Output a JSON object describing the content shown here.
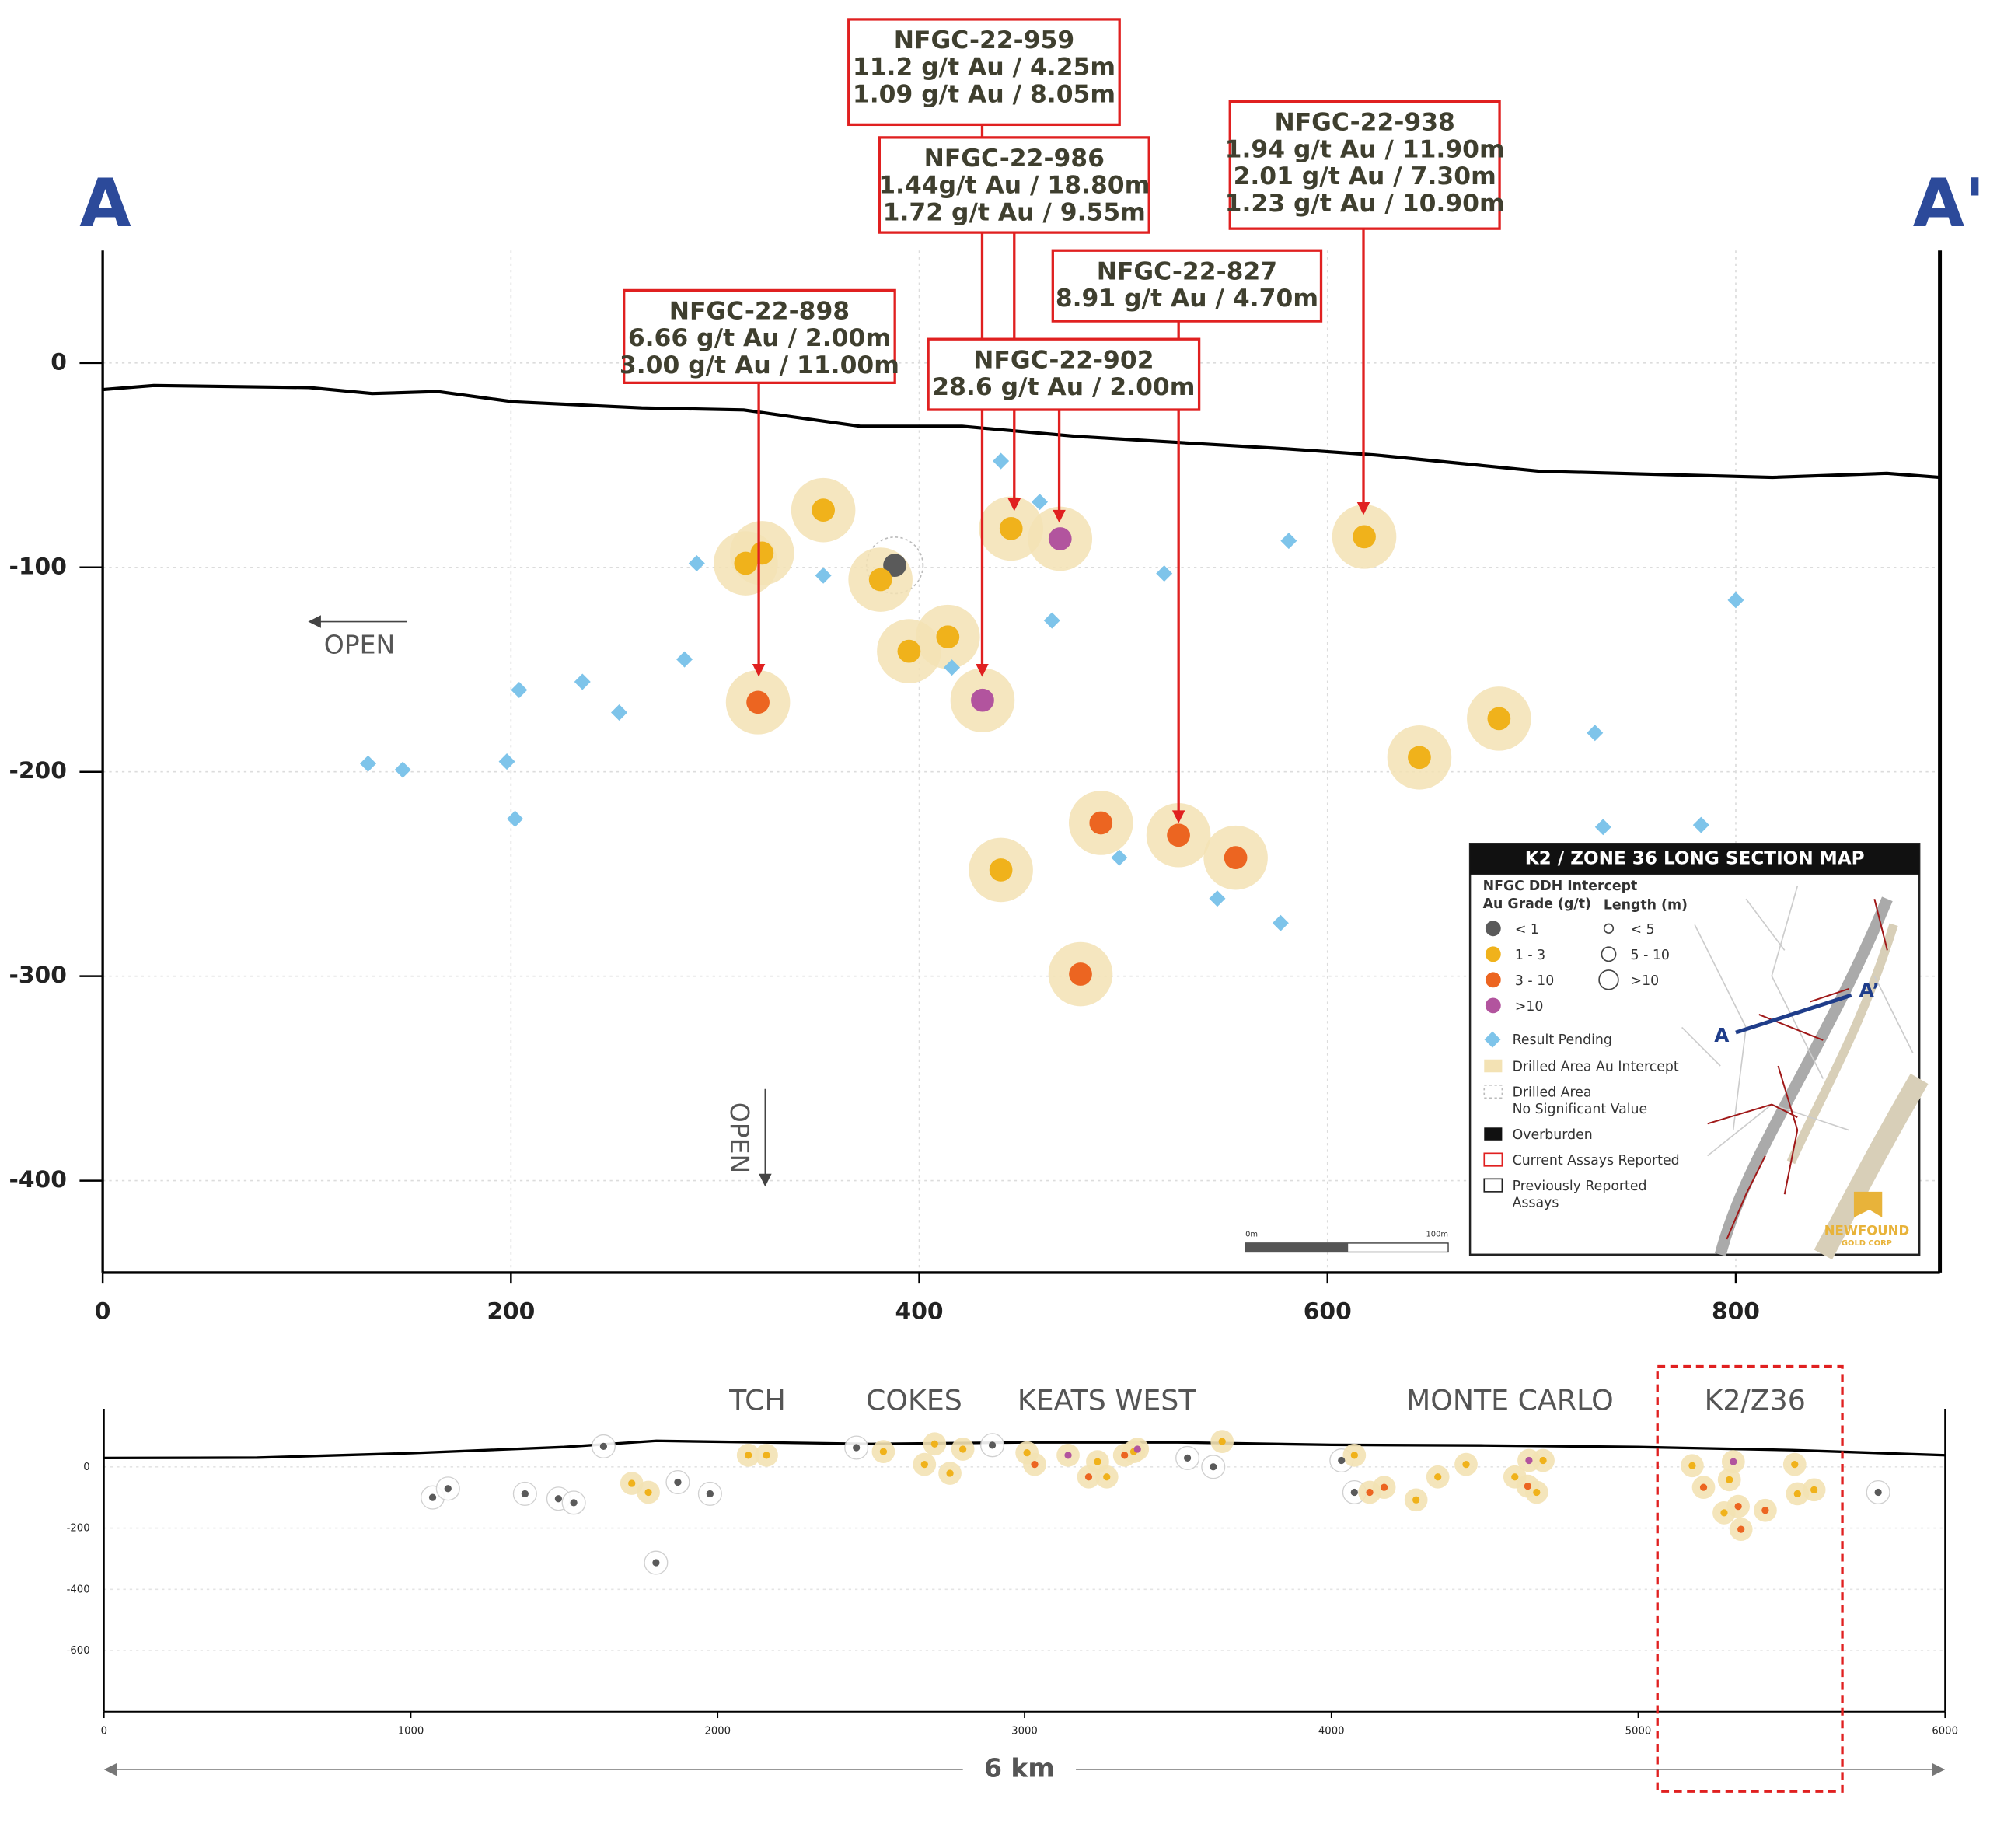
{
  "chart_data": [
    {
      "type": "scatter",
      "section_start": "A",
      "section_end": "A'",
      "xlim": [
        0,
        900
      ],
      "ylim": [
        -445,
        55
      ],
      "xticks": [
        0,
        200,
        400,
        600,
        800
      ],
      "yticks": [
        0,
        -100,
        -200,
        -300,
        -400
      ],
      "grid": true,
      "surface": {
        "x": [
          0,
          25,
          101,
          132,
          164,
          201,
          264,
          314,
          371,
          421,
          478,
          579,
          623,
          704,
          818,
          874,
          900
        ],
        "values": [
          -13,
          -11,
          -12,
          -15,
          -14,
          -19,
          -22,
          -23,
          -31,
          -31,
          -36,
          -42,
          -45,
          -53,
          -56,
          -54,
          -56
        ]
      },
      "series": [
        {
          "name": "< 1",
          "color": "#5a5a5a",
          "marker": "circle",
          "x": [
            388
          ],
          "values": [
            -99
          ]
        },
        {
          "name": "1 - 3",
          "color": "#f0b21b",
          "marker": "circle",
          "x": [
            315,
            323,
            353,
            381,
            395,
            414,
            445,
            618,
            645,
            684,
            440
          ],
          "values": [
            -98,
            -93,
            -72,
            -106,
            -141,
            -134,
            -81,
            -85,
            -193,
            -174,
            -248
          ]
        },
        {
          "name": "3 - 10",
          "color": "#ec6521",
          "marker": "circle",
          "x": [
            321,
            489,
            527,
            555,
            479
          ],
          "values": [
            -166,
            -225,
            -231,
            -242,
            -299
          ]
        },
        {
          "name": ">10",
          "color": "#b2549e",
          "marker": "circle",
          "x": [
            431,
            469
          ],
          "values": [
            -165,
            -86
          ]
        },
        {
          "name": "Result Pending",
          "color": "#7ec4ea",
          "marker": "diamond",
          "x": [
            440,
            459,
            581,
            800,
            291,
            353,
            520,
            465,
            416,
            285,
            204,
            235,
            253,
            130,
            147,
            198,
            202,
            731,
            735,
            783,
            498,
            546,
            577
          ],
          "values": [
            -48,
            -68,
            -87,
            -116,
            -98,
            -104,
            -103,
            -126,
            -149,
            -145,
            -160,
            -156,
            -171,
            -196,
            -199,
            -195,
            -223,
            -181,
            -227,
            -226,
            -242,
            -262,
            -274
          ]
        }
      ],
      "callouts": [
        {
          "lines": [
            "NFGC-22-959",
            "11.2 g/t Au / 4.25m",
            "1.09 g/t Au / 8.05m"
          ]
        },
        {
          "lines": [
            "NFGC-22-986",
            "1.44g/t Au / 18.80m",
            "1.72 g/t Au / 9.55m"
          ]
        },
        {
          "lines": [
            "NFGC-22-938",
            "1.94 g/t Au / 11.90m",
            "2.01 g/t Au / 7.30m",
            "1.23 g/t Au / 10.90m"
          ]
        },
        {
          "lines": [
            "NFGC-22-827",
            "8.91 g/t Au / 4.70m"
          ]
        },
        {
          "lines": [
            "NFGC-22-898",
            "6.66 g/t Au / 2.00m",
            "3.00 g/t Au / 11.00m"
          ]
        },
        {
          "lines": [
            "NFGC-22-902",
            "28.6 g/t Au / 2.00m"
          ]
        }
      ],
      "annotations": [
        "OPEN",
        "OPEN"
      ],
      "legend": {
        "title": "K2 / ZONE 36 LONG SECTION MAP",
        "heading": "NFGC DDH Intercept",
        "grade_heading": "Au Grade (g/t)",
        "length_heading": "Length (m)",
        "length_items": [
          "< 5",
          "5 - 10",
          ">10"
        ],
        "extra_items": [
          [
            "Drilled Area Au Intercept"
          ],
          [
            "Drilled Area",
            "No Significant Value"
          ],
          [
            "Overburden"
          ],
          [
            "Current Assays Reported"
          ],
          [
            "Previously Reported",
            "Assays"
          ]
        ],
        "map_labels": [
          "A",
          "A’"
        ],
        "scale": [
          "0m",
          "100m"
        ],
        "logo": [
          "NEWFOUND",
          "GOLD CORP"
        ]
      }
    },
    {
      "type": "scatter",
      "xlim": [
        0,
        6000
      ],
      "ylim": [
        -800,
        190
      ],
      "xticks": [
        0,
        1000,
        2000,
        3000,
        4000,
        5000,
        6000
      ],
      "yticks": [
        0,
        -200,
        -400,
        -600
      ],
      "surface": {
        "x": [
          0,
          500,
          1000,
          1500,
          1800,
          2500,
          3000,
          3500,
          4000,
          4500,
          5000,
          5500,
          6000
        ],
        "values": [
          29,
          30,
          45,
          65,
          85,
          75,
          80,
          80,
          72,
          70,
          65,
          55,
          38
        ]
      },
      "series": [
        {
          "color": "#5a5a5a",
          "x": [
            1071,
            1121,
            1372,
            1481,
            1531,
            1628,
            1870,
            1975,
            1799,
            2452,
            3531,
            3615,
            4033,
            4075,
            5782,
            2895
          ],
          "values": [
            -100,
            -71,
            -88,
            -104,
            -117,
            67,
            -50,
            -88,
            -313,
            63,
            29,
            0,
            21,
            -83,
            -83,
            71
          ]
        },
        {
          "color": "#f0b21b",
          "x": [
            1720,
            1774,
            2100,
            2159,
            2540,
            2674,
            2707,
            2757,
            2799,
            3008,
            3238,
            3268,
            3356,
            3644,
            4075,
            4347,
            4276,
            4439,
            4598,
            4669,
            4690,
            5176,
            5297,
            5280,
            5510,
            5519,
            5573
          ],
          "values": [
            -54,
            -83,
            38,
            38,
            50,
            8,
            75,
            -21,
            58,
            46,
            17,
            -33,
            50,
            83,
            38,
            -33,
            -108,
            8,
            -33,
            -83,
            21,
            4,
            -42,
            -150,
            8,
            -88,
            -75
          ]
        },
        {
          "color": "#ec6521",
          "x": [
            3033,
            3209,
            3326,
            4125,
            4172,
            4640,
            5213,
            5326,
            5335,
            5414
          ],
          "values": [
            8,
            -33,
            38,
            -83,
            -67,
            -63,
            -67,
            -129,
            -204,
            -142
          ]
        },
        {
          "color": "#b2549e",
          "x": [
            3142,
            3368,
            4644,
            5310
          ],
          "values": [
            38,
            58,
            21,
            17
          ]
        }
      ],
      "zones": [
        "TCH",
        "COKES",
        "KEATS WEST",
        "MONTE CARLO",
        "K2/Z36"
      ],
      "span_label": "6 km"
    }
  ]
}
